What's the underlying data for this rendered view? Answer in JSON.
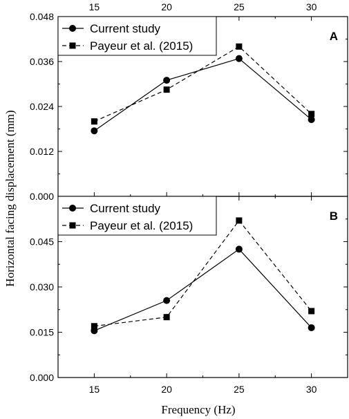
{
  "chart_data": [
    {
      "type": "line",
      "panel_label": "A",
      "x": [
        15,
        20,
        25,
        30
      ],
      "xticks": [
        "15",
        "20",
        "25",
        "30"
      ],
      "xlabel": "Frequency (Hz)",
      "ylabel": "Horizontal facing displacement (mm)",
      "ylim": [
        0,
        0.048
      ],
      "yticks": [
        "0.000",
        "0.012",
        "0.024",
        "0.036",
        "0.048"
      ],
      "legend_position": "top-left",
      "series": [
        {
          "name": "Current study",
          "values": [
            0.0175,
            0.031,
            0.0368,
            0.0205
          ],
          "marker": "circle",
          "line": "solid"
        },
        {
          "name": "Payeur et al. (2015)",
          "values": [
            0.02,
            0.0285,
            0.04,
            0.022
          ],
          "marker": "square",
          "line": "dashed"
        }
      ]
    },
    {
      "type": "line",
      "panel_label": "B",
      "x": [
        15,
        20,
        25,
        30
      ],
      "xticks": [
        "15",
        "20",
        "25",
        "30"
      ],
      "xlabel": "Frequency (Hz)",
      "ylabel": "Horizontal facing displacement (mm)",
      "ylim": [
        0,
        0.06
      ],
      "yticks": [
        "0.000",
        "0.015",
        "0.030",
        "0.045"
      ],
      "legend_position": "top-left",
      "series": [
        {
          "name": "Current study",
          "values": [
            0.0155,
            0.0255,
            0.0425,
            0.0165
          ],
          "marker": "circle",
          "line": "solid"
        },
        {
          "name": "Payeur et al. (2015)",
          "values": [
            0.017,
            0.02,
            0.052,
            0.022
          ],
          "marker": "square",
          "line": "dashed"
        }
      ]
    }
  ]
}
